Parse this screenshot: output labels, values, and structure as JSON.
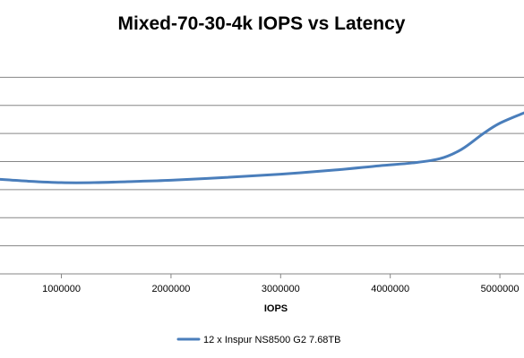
{
  "chart_data": {
    "type": "line",
    "title": "Mixed-70-30-4k IOPS vs Latency",
    "xlabel": "IOPS",
    "ylabel": "",
    "x_ticks": [
      1000000,
      2000000,
      3000000,
      4000000,
      5000000
    ],
    "x_tick_labels": [
      "1000000",
      "2000000",
      "3000000",
      "4000000",
      "5000000"
    ],
    "xlim": [
      440000,
      5220000
    ],
    "ylim": [
      0,
      2.4
    ],
    "y_gridlines": [
      0,
      0.3,
      0.6,
      0.9,
      1.2,
      1.5,
      1.8,
      2.1
    ],
    "grid": "horizontal",
    "legend_position": "bottom",
    "series": [
      {
        "name": "12 x Inspur NS8500 G2 7.68TB",
        "color": "#4a7ebb",
        "x": [
          440000,
          700000,
          1000000,
          1300000,
          1600000,
          2000000,
          2500000,
          3000000,
          3500000,
          3900000,
          4200000,
          4450000,
          4650000,
          4850000,
          5000000,
          5220000
        ],
        "y": [
          1.01,
          0.99,
          0.975,
          0.975,
          0.985,
          1.0,
          1.03,
          1.065,
          1.11,
          1.155,
          1.185,
          1.23,
          1.33,
          1.5,
          1.61,
          1.72
        ]
      }
    ]
  }
}
